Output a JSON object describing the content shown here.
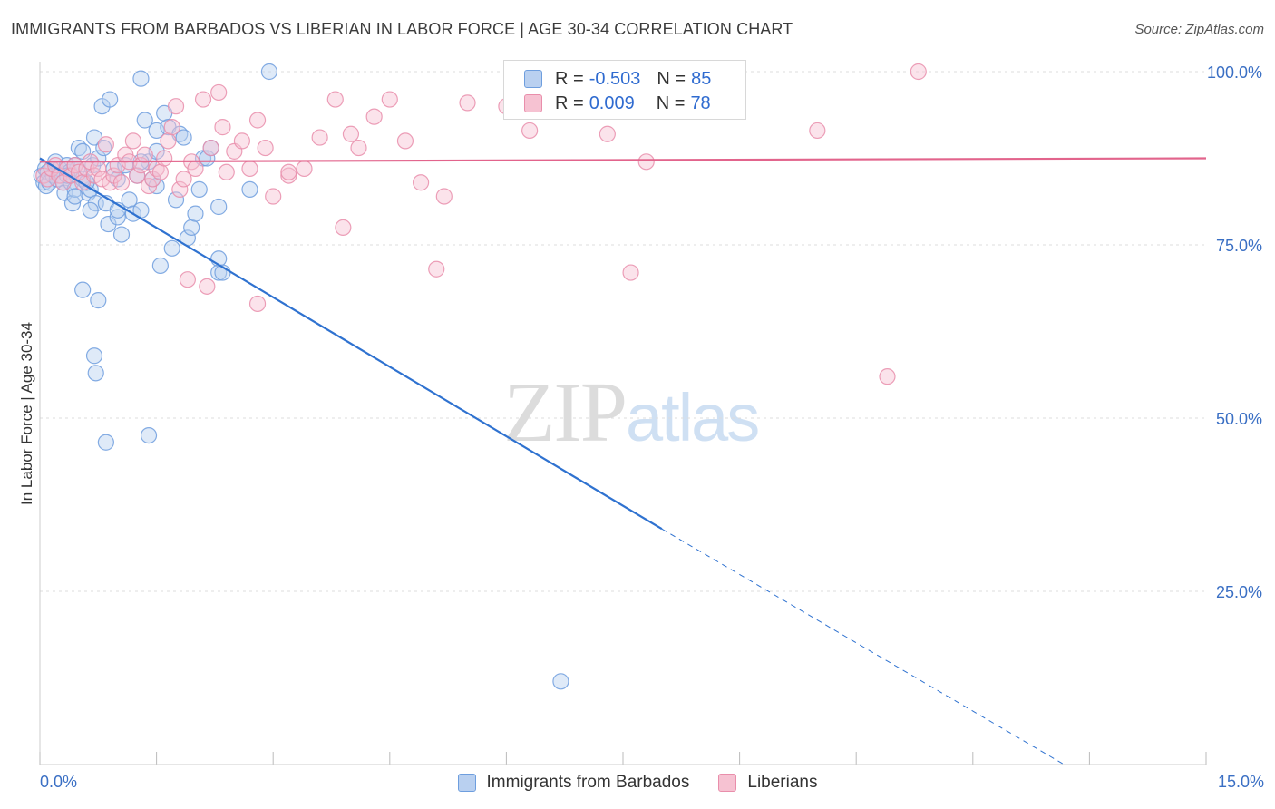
{
  "title": "IMMIGRANTS FROM BARBADOS VS LIBERIAN IN LABOR FORCE | AGE 30-34 CORRELATION CHART",
  "source": "Source: ZipAtlas.com",
  "watermark": {
    "part1": "ZIP",
    "part2": "atlas"
  },
  "legend": {
    "r_label": "R =",
    "n_label": "N =",
    "rows": [
      {
        "r": "-0.503",
        "n": "85"
      },
      {
        "r": "0.009",
        "n": "78"
      }
    ]
  },
  "colors": {
    "blue_stroke": "#6e9ede",
    "blue_fill": "#b9d0f0",
    "blue_line": "#2f72d0",
    "pink_stroke": "#e98eab",
    "pink_fill": "#f6c2d2",
    "pink_line": "#e2648c",
    "tick_text": "#3a6fc4",
    "grid": "#dddddd"
  },
  "chart_data": {
    "type": "scatter",
    "title": "IMMIGRANTS FROM BARBADOS VS LIBERIAN IN LABOR FORCE | AGE 30-34 CORRELATION CHART",
    "xlabel": "",
    "ylabel": "In Labor Force | Age 30-34",
    "xlim": [
      0,
      15
    ],
    "ylim": [
      0,
      100
    ],
    "x_tick_labels": [
      "0.0%",
      "15.0%"
    ],
    "y_ticks": [
      {
        "value": 25,
        "label": "25.0%"
      },
      {
        "value": 50,
        "label": "50.0%"
      },
      {
        "value": 75,
        "label": "75.0%"
      },
      {
        "value": 100,
        "label": "100.0%"
      }
    ],
    "grid": true,
    "legend_position": "top-center",
    "series": [
      {
        "name": "Immigrants from Barbados",
        "color": "blue",
        "points": [
          [
            0.02,
            85
          ],
          [
            0.05,
            84
          ],
          [
            0.07,
            86
          ],
          [
            0.08,
            83.5
          ],
          [
            0.1,
            85.5
          ],
          [
            0.12,
            84
          ],
          [
            0.15,
            86
          ],
          [
            0.17,
            85
          ],
          [
            0.2,
            87
          ],
          [
            0.22,
            84.5
          ],
          [
            0.25,
            86
          ],
          [
            0.27,
            85
          ],
          [
            0.3,
            84
          ],
          [
            0.32,
            82.5
          ],
          [
            0.35,
            86.5
          ],
          [
            0.38,
            85.5
          ],
          [
            0.4,
            84
          ],
          [
            0.42,
            81
          ],
          [
            0.45,
            83
          ],
          [
            0.48,
            86
          ],
          [
            0.5,
            89
          ],
          [
            0.55,
            88.5
          ],
          [
            0.6,
            84
          ],
          [
            0.62,
            82.5
          ],
          [
            0.65,
            83
          ],
          [
            0.68,
            86.5
          ],
          [
            0.7,
            90.5
          ],
          [
            0.72,
            81
          ],
          [
            0.75,
            87.5
          ],
          [
            0.8,
            95
          ],
          [
            0.82,
            89
          ],
          [
            0.85,
            81
          ],
          [
            0.88,
            78
          ],
          [
            0.9,
            96
          ],
          [
            0.95,
            86
          ],
          [
            1.0,
            79
          ],
          [
            1.0,
            84.5
          ],
          [
            1.05,
            76.5
          ],
          [
            1.1,
            86.5
          ],
          [
            1.15,
            81.5
          ],
          [
            1.2,
            79.5
          ],
          [
            1.25,
            85
          ],
          [
            1.3,
            80
          ],
          [
            1.3,
            99
          ],
          [
            1.35,
            93
          ],
          [
            1.4,
            87
          ],
          [
            1.45,
            84.5
          ],
          [
            1.5,
            83.5
          ],
          [
            1.5,
            91.5
          ],
          [
            1.55,
            72
          ],
          [
            1.6,
            94
          ],
          [
            1.65,
            92
          ],
          [
            1.7,
            74.5
          ],
          [
            1.75,
            81.5
          ],
          [
            1.8,
            91
          ],
          [
            1.85,
            90.5
          ],
          [
            1.5,
            88.5
          ],
          [
            1.9,
            76
          ],
          [
            1.95,
            77.5
          ],
          [
            2.0,
            79.5
          ],
          [
            2.05,
            83
          ],
          [
            2.1,
            87.5
          ],
          [
            2.15,
            87.5
          ],
          [
            2.2,
            89
          ],
          [
            1.3,
            87
          ],
          [
            1.0,
            80
          ],
          [
            2.3,
            73
          ],
          [
            0.45,
            86.5
          ],
          [
            0.55,
            84.5
          ],
          [
            0.6,
            84
          ],
          [
            2.3,
            71
          ],
          [
            2.35,
            71
          ],
          [
            2.3,
            80.5
          ],
          [
            2.7,
            83
          ],
          [
            2.95,
            100
          ],
          [
            0.45,
            82
          ],
          [
            0.55,
            68.5
          ],
          [
            0.65,
            80
          ],
          [
            0.75,
            67
          ],
          [
            0.7,
            59
          ],
          [
            0.72,
            56.5
          ],
          [
            0.85,
            46.5
          ],
          [
            1.4,
            47.5
          ],
          [
            6.7,
            12
          ],
          [
            0.35,
            85
          ]
        ]
      },
      {
        "name": "Liberians",
        "color": "pink",
        "points": [
          [
            0.05,
            85
          ],
          [
            0.1,
            84.5
          ],
          [
            0.15,
            86
          ],
          [
            0.2,
            86.5
          ],
          [
            0.25,
            85
          ],
          [
            0.3,
            84
          ],
          [
            0.35,
            86
          ],
          [
            0.4,
            85
          ],
          [
            0.45,
            86.5
          ],
          [
            0.5,
            85.5
          ],
          [
            0.55,
            84
          ],
          [
            0.6,
            86
          ],
          [
            0.65,
            87
          ],
          [
            0.7,
            85
          ],
          [
            0.75,
            86
          ],
          [
            0.8,
            84.5
          ],
          [
            0.85,
            89.5
          ],
          [
            0.9,
            84
          ],
          [
            0.95,
            85
          ],
          [
            1.0,
            86.5
          ],
          [
            1.05,
            84
          ],
          [
            1.1,
            88
          ],
          [
            1.15,
            87
          ],
          [
            1.2,
            90
          ],
          [
            1.25,
            85
          ],
          [
            1.3,
            86.5
          ],
          [
            1.35,
            88
          ],
          [
            1.4,
            83.5
          ],
          [
            1.45,
            84.5
          ],
          [
            1.5,
            86
          ],
          [
            1.55,
            85.5
          ],
          [
            1.6,
            87.5
          ],
          [
            1.65,
            90
          ],
          [
            1.7,
            92
          ],
          [
            1.75,
            95
          ],
          [
            1.8,
            83
          ],
          [
            1.85,
            84.5
          ],
          [
            1.9,
            70
          ],
          [
            1.95,
            87
          ],
          [
            2.0,
            86
          ],
          [
            2.1,
            96
          ],
          [
            2.2,
            89
          ],
          [
            2.3,
            97
          ],
          [
            2.35,
            92
          ],
          [
            2.4,
            85.5
          ],
          [
            2.5,
            88.5
          ],
          [
            2.6,
            90
          ],
          [
            2.7,
            86
          ],
          [
            2.8,
            93
          ],
          [
            2.9,
            89
          ],
          [
            3.0,
            82
          ],
          [
            3.2,
            85
          ],
          [
            3.4,
            86
          ],
          [
            3.6,
            90.5
          ],
          [
            3.8,
            96
          ],
          [
            4.0,
            91
          ],
          [
            4.1,
            89
          ],
          [
            4.3,
            93.5
          ],
          [
            4.5,
            96
          ],
          [
            4.7,
            90
          ],
          [
            4.9,
            84
          ],
          [
            5.1,
            71.5
          ],
          [
            5.2,
            82
          ],
          [
            5.5,
            95.5
          ],
          [
            6.0,
            95
          ],
          [
            6.3,
            91.5
          ],
          [
            7.3,
            91
          ],
          [
            7.6,
            71
          ],
          [
            7.8,
            87
          ],
          [
            8.2,
            95
          ],
          [
            8.5,
            97.5
          ],
          [
            10.0,
            91.5
          ],
          [
            10.9,
            56
          ],
          [
            11.3,
            100
          ],
          [
            2.15,
            69
          ],
          [
            2.8,
            66.5
          ],
          [
            3.2,
            85.5
          ],
          [
            3.9,
            77.5
          ]
        ]
      }
    ],
    "trendlines": [
      {
        "series": "Immigrants from Barbados",
        "x0": 0.0,
        "y0": 87.5,
        "x1": 8.0,
        "y1": 34.0,
        "dashed_to_x": 15.0,
        "dashed_to_y": -12.0
      },
      {
        "series": "Liberians",
        "x0": 0.0,
        "y0": 87.0,
        "x1": 15.0,
        "y1": 87.5
      }
    ]
  }
}
